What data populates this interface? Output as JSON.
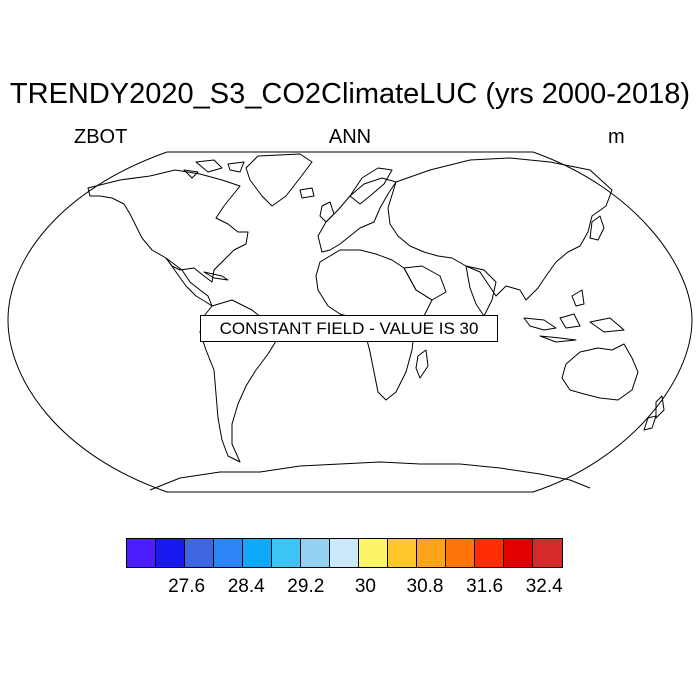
{
  "title": "TRENDY2020_S3_CO2ClimateLUC (yrs 2000-2018)",
  "left_subtitle": "ZBOT",
  "center_subtitle": "ANN",
  "right_subtitle": "m",
  "constant_field_text": "CONSTANT FIELD - VALUE IS 30",
  "colorbar": {
    "colors": [
      "#4b1dff",
      "#1a1af0",
      "#3e66e0",
      "#2a86f5",
      "#10a8fa",
      "#3dc4f7",
      "#94d0ef",
      "#cbe8f8",
      "#fef46a",
      "#fec82a",
      "#fea31a",
      "#fe760a",
      "#fe2c00",
      "#e20000",
      "#d42a2a"
    ],
    "labels": [
      "27.6",
      "28.4",
      "29.2",
      "30",
      "30.8",
      "31.6",
      "32.4"
    ]
  }
}
